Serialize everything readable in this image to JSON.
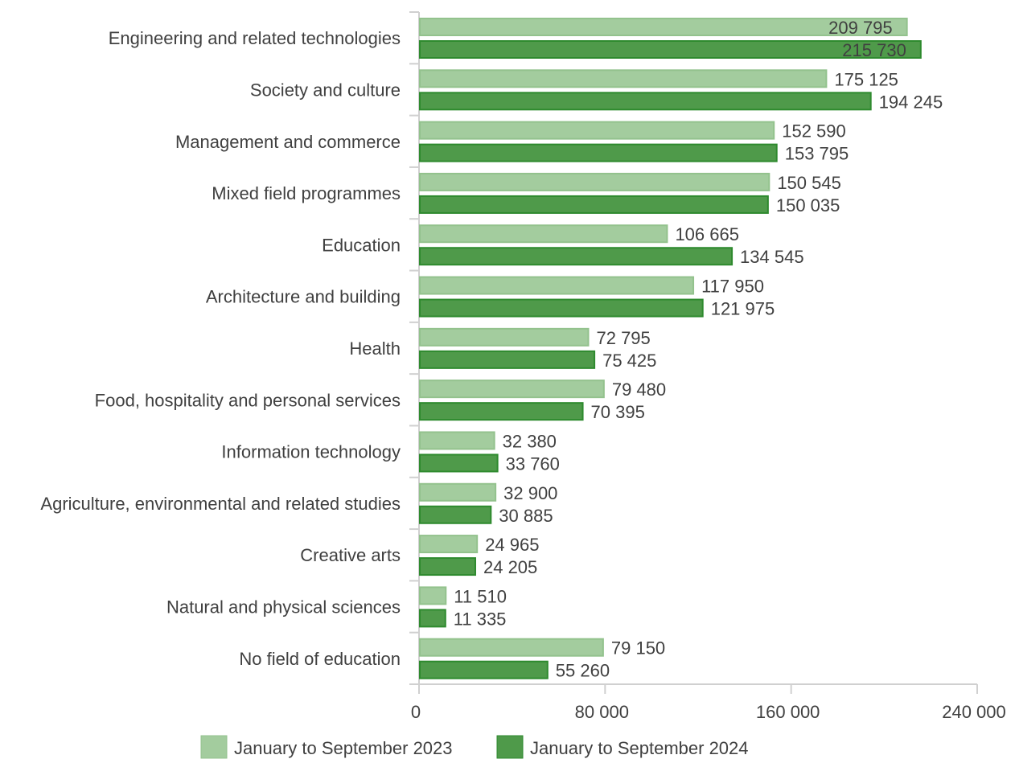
{
  "chart_data": {
    "type": "bar",
    "orientation": "horizontal",
    "title": "",
    "xlabel": "",
    "ylabel": "",
    "categories": [
      "Engineering and related technologies",
      "Society and culture",
      "Management and commerce",
      "Mixed field programmes",
      "Education",
      "Architecture and building",
      "Health",
      "Food, hospitality and personal services",
      "Information technology",
      "Agriculture, environmental and related studies",
      "Creative arts",
      "Natural and physical sciences",
      "No field of education"
    ],
    "series": [
      {
        "name": "January to September 2023",
        "color": "#a3cc9e",
        "values": [
          209795,
          175125,
          152590,
          150545,
          106665,
          117950,
          72795,
          79480,
          32380,
          32900,
          24965,
          11510,
          79150
        ],
        "labels": [
          "209 795",
          "175 125",
          "152 590",
          "150 545",
          "106 665",
          "117 950",
          "72 795",
          "79 480",
          "32 380",
          "32 900",
          "24 965",
          "11 510",
          "79 150"
        ]
      },
      {
        "name": "January to September 2024",
        "color": "#4f9a4a",
        "values": [
          215730,
          194245,
          153795,
          150035,
          134545,
          121975,
          75425,
          70395,
          33760,
          30885,
          24205,
          11335,
          55260
        ],
        "labels": [
          "215 730",
          "194 245",
          "153 795",
          "150 035",
          "134 545",
          "121 975",
          "75 425",
          "70 395",
          "33 760",
          "30 885",
          "24 205",
          "11 335",
          "55 260"
        ]
      }
    ],
    "xlim": [
      0,
      240000
    ],
    "x_ticks": [
      0,
      80000,
      160000,
      240000
    ],
    "x_tick_labels": [
      "0",
      "80 000",
      "160 000",
      "240 000"
    ],
    "grid": false,
    "legend_position": "bottom"
  }
}
